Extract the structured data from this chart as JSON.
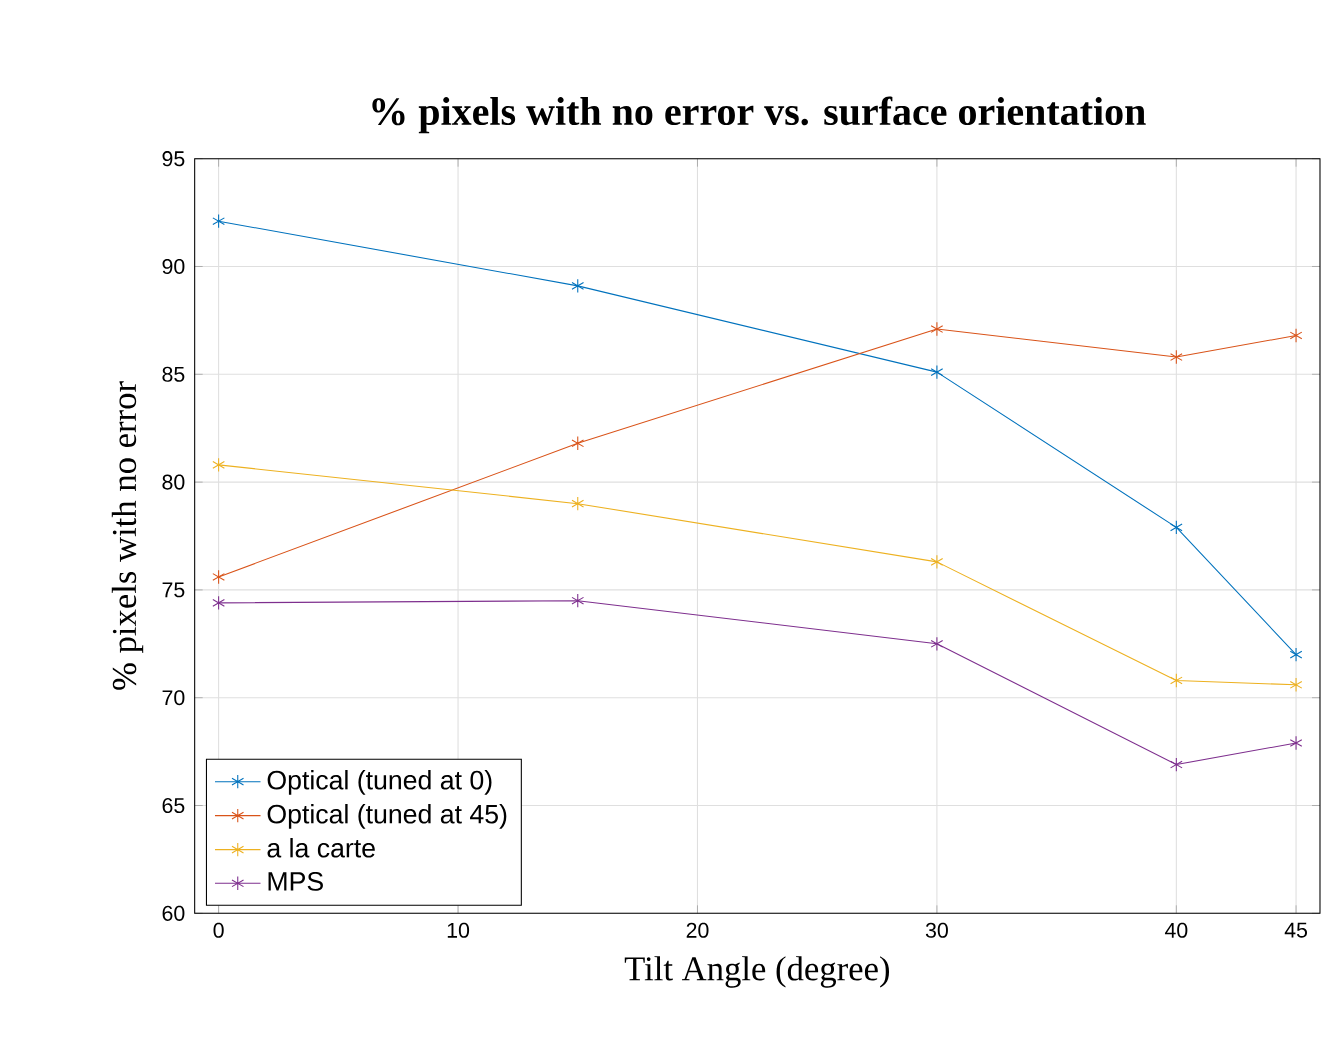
{
  "chart_data": {
    "type": "line",
    "title": "% pixels with no error vs. surface orientation",
    "xlabel": "Tilt Angle (degree)",
    "ylabel": "% pixels with no error",
    "x": [
      0,
      15,
      30,
      40,
      45
    ],
    "series": [
      {
        "name": "Optical (tuned at 0)",
        "color": "#0072bd",
        "values": [
          92.1,
          89.1,
          85.1,
          77.9,
          72.0
        ]
      },
      {
        "name": "Optical (tuned at 45)",
        "color": "#d95319",
        "values": [
          75.6,
          81.8,
          87.1,
          85.8,
          86.8
        ]
      },
      {
        "name": "a la carte",
        "color": "#edb120",
        "values": [
          80.8,
          79.0,
          76.3,
          70.8,
          70.6
        ]
      },
      {
        "name": "MPS",
        "color": "#7e2f8e",
        "values": [
          74.4,
          74.5,
          72.5,
          66.9,
          67.9
        ]
      }
    ],
    "xlim": [
      -1,
      46
    ],
    "xticks": [
      0,
      10,
      20,
      30,
      40,
      45
    ],
    "ylim": [
      60,
      95
    ],
    "yticks": [
      60,
      65,
      70,
      75,
      80,
      85,
      90,
      95
    ],
    "grid": true,
    "legend": "bottom left",
    "marker": "cross",
    "line_style": "solid"
  }
}
